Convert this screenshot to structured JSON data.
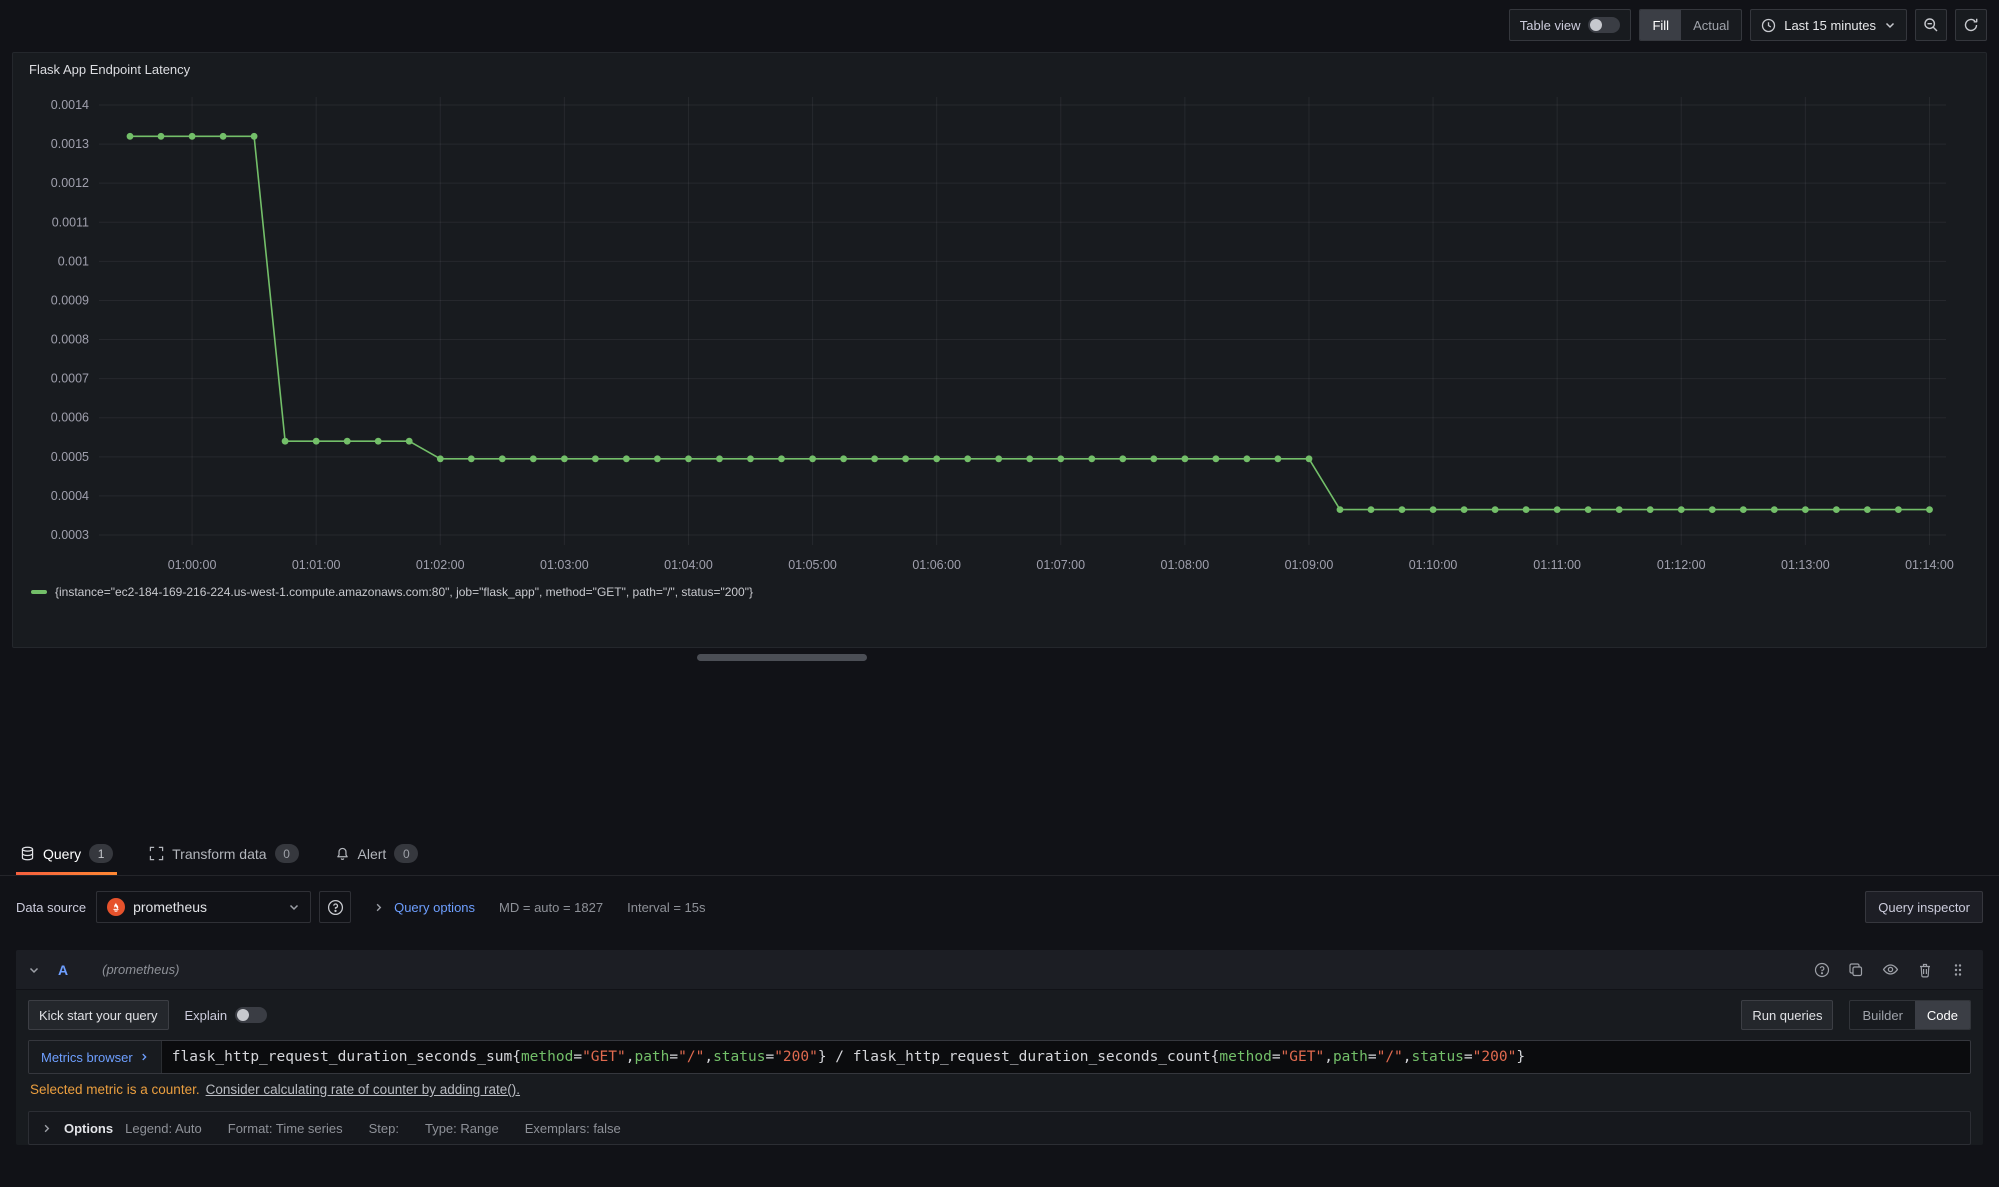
{
  "toolbar": {
    "table_view_label": "Table view",
    "fill_label": "Fill",
    "actual_label": "Actual",
    "time_range_label": "Last 15 minutes"
  },
  "panel": {
    "title": "Flask App Endpoint Latency",
    "legend_label": "{instance=\"ec2-184-169-216-224.us-west-1.compute.amazonaws.com:80\", job=\"flask_app\", method=\"GET\", path=\"/\", status=\"200\"}"
  },
  "chart_data": {
    "type": "line",
    "title": "Flask App Endpoint Latency",
    "series": [
      {
        "name": "{instance=\"ec2-184-169-216-224.us-west-1.compute.amazonaws.com:80\", job=\"flask_app\", method=\"GET\", path=\"/\", status=\"200\"}",
        "color": "#73bf69",
        "step_seconds": 15,
        "segments": [
          {
            "from_s": -30,
            "to_s": 30,
            "value": 0.00132
          },
          {
            "from_s": 45,
            "to_s": 105,
            "value": 0.00054
          },
          {
            "from_s": 120,
            "to_s": 540,
            "value": 0.000495
          },
          {
            "from_s": 555,
            "to_s": 840,
            "value": 0.000365
          }
        ]
      }
    ],
    "y_ticks": [
      "0.0014",
      "0.0013",
      "0.0012",
      "0.0011",
      "0.001",
      "0.0009",
      "0.0008",
      "0.0007",
      "0.0006",
      "0.0005",
      "0.0004",
      "0.0003"
    ],
    "x_ticks": [
      "01:00:00",
      "01:01:00",
      "01:02:00",
      "01:03:00",
      "01:04:00",
      "01:05:00",
      "01:06:00",
      "01:07:00",
      "01:08:00",
      "01:09:00",
      "01:10:00",
      "01:11:00",
      "01:12:00",
      "01:13:00",
      "01:14:00"
    ],
    "x_tick_seconds": [
      0,
      60,
      120,
      180,
      240,
      300,
      360,
      420,
      480,
      540,
      600,
      660,
      720,
      780,
      840
    ],
    "x_range_seconds": [
      -45,
      848
    ],
    "ylim": [
      0.0003,
      0.0014
    ],
    "grid": true,
    "legend_position": "bottom"
  },
  "tabs": [
    {
      "label": "Query",
      "count": "1"
    },
    {
      "label": "Transform data",
      "count": "0"
    },
    {
      "label": "Alert",
      "count": "0"
    }
  ],
  "datasource_row": {
    "label": "Data source",
    "value": "prometheus",
    "query_options_label": "Query options",
    "md_text": "MD = auto = 1827",
    "interval_text": "Interval = 15s",
    "query_inspector_label": "Query inspector"
  },
  "query_row": {
    "ref_id": "A",
    "datasource_hint": "(prometheus)"
  },
  "query_toolbar": {
    "kick_start_label": "Kick start your query",
    "explain_label": "Explain",
    "run_queries_label": "Run queries",
    "builder_label": "Builder",
    "code_label": "Code"
  },
  "editor": {
    "metrics_browser_label": "Metrics browser",
    "query_text": "flask_http_request_duration_seconds_sum{method=\"GET\",path=\"/\",status=\"200\"} / flask_http_request_duration_seconds_count{method=\"GET\",path=\"/\",status=\"200\"}",
    "segments": [
      {
        "t": "flask_http_request_duration_seconds_sum{",
        "c": "plain"
      },
      {
        "t": "method",
        "c": "label"
      },
      {
        "t": "=",
        "c": "plain"
      },
      {
        "t": "\"GET\"",
        "c": "string"
      },
      {
        "t": ",",
        "c": "plain"
      },
      {
        "t": "path",
        "c": "label"
      },
      {
        "t": "=",
        "c": "plain"
      },
      {
        "t": "\"/\"",
        "c": "string"
      },
      {
        "t": ",",
        "c": "plain"
      },
      {
        "t": "status",
        "c": "label"
      },
      {
        "t": "=",
        "c": "plain"
      },
      {
        "t": "\"200\"",
        "c": "string"
      },
      {
        "t": "} / flask_http_request_duration_seconds_count{",
        "c": "plain"
      },
      {
        "t": "method",
        "c": "label"
      },
      {
        "t": "=",
        "c": "plain"
      },
      {
        "t": "\"GET\"",
        "c": "string"
      },
      {
        "t": ",",
        "c": "plain"
      },
      {
        "t": "path",
        "c": "label"
      },
      {
        "t": "=",
        "c": "plain"
      },
      {
        "t": "\"/\"",
        "c": "string"
      },
      {
        "t": ",",
        "c": "plain"
      },
      {
        "t": "status",
        "c": "label"
      },
      {
        "t": "=",
        "c": "plain"
      },
      {
        "t": "\"200\"",
        "c": "string"
      },
      {
        "t": "}",
        "c": "plain"
      }
    ]
  },
  "warning": {
    "text": "Selected metric is a counter.",
    "link": "Consider calculating rate of counter by adding rate()."
  },
  "options_row": {
    "label": "Options",
    "items": [
      "Legend: Auto",
      "Format: Time series",
      "Step:",
      "Type: Range",
      "Exemplars: false"
    ]
  },
  "colors": {
    "series_green": "#73bf69",
    "accent_orange_gradient": [
      "#f55f3e",
      "#ff8833"
    ],
    "link_blue": "#6e9fff",
    "warning_orange": "#eb9f3f",
    "prometheus_orange": "#e6522c"
  }
}
